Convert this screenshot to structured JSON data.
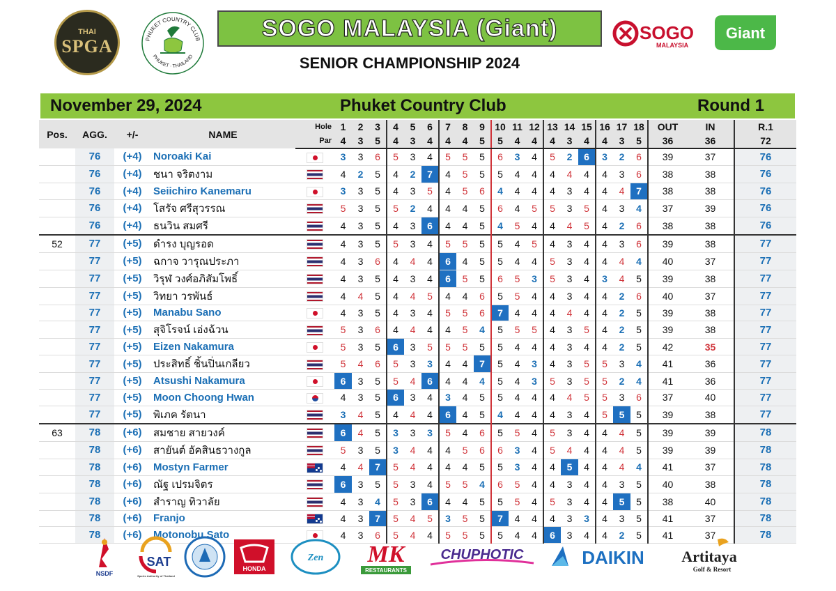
{
  "header": {
    "spga_logo_small": "THAI",
    "spga_logo": "SPGA",
    "pcc_logo_top": "PHUKET COUNTRY CLUB",
    "pcc_logo_bottom": "PHUKET · THAILAND",
    "title": "SOGO MALAYSIA (Giant)",
    "subtitle": "SENIOR CHAMPIONSHIP 2024",
    "sogo_logo": "SOGO",
    "sogo_logo_sub": "MALAYSIA",
    "giant_logo": "Giant"
  },
  "event": {
    "date": "November 29, 2024",
    "venue": "Phuket Country Club",
    "round": "Round 1"
  },
  "columns": {
    "pos": "Pos.",
    "agg": "AGG.",
    "pm": "+/-",
    "name": "NAME",
    "hole_label": "Hole",
    "par_label": "Par",
    "out": "OUT",
    "in": "IN",
    "r1": "R.1"
  },
  "holes": [
    "1",
    "2",
    "3",
    "4",
    "5",
    "6",
    "7",
    "8",
    "9",
    "10",
    "11",
    "12",
    "13",
    "14",
    "15",
    "16",
    "17",
    "18"
  ],
  "pars": [
    "4",
    "3",
    "5",
    "4",
    "3",
    "4",
    "4",
    "4",
    "5",
    "5",
    "4",
    "4",
    "4",
    "3",
    "4",
    "4",
    "3",
    "5"
  ],
  "par_out": "36",
  "par_in": "36",
  "par_total": "72",
  "players": [
    {
      "pos": "",
      "agg": "76",
      "pm": "(+4)",
      "name": "Noroaki Kai",
      "flag": "jp",
      "scores": [
        "3",
        "3",
        "6",
        "5",
        "3",
        "4",
        "5",
        "5",
        "5",
        "6",
        "3",
        "4",
        "5",
        "2",
        "6",
        "3",
        "2",
        "6"
      ],
      "out": "39",
      "in": "37",
      "r1": "76"
    },
    {
      "pos": "",
      "agg": "76",
      "pm": "(+4)",
      "name": "ชนา จริตงาม",
      "flag": "th",
      "scores": [
        "4",
        "2",
        "5",
        "4",
        "2",
        "7",
        "4",
        "5",
        "5",
        "5",
        "4",
        "4",
        "4",
        "4",
        "4",
        "4",
        "3",
        "6"
      ],
      "out": "38",
      "in": "38",
      "r1": "76"
    },
    {
      "pos": "",
      "agg": "76",
      "pm": "(+4)",
      "name": "Seiichiro Kanemaru",
      "flag": "jp",
      "scores": [
        "3",
        "3",
        "5",
        "4",
        "3",
        "5",
        "4",
        "5",
        "6",
        "4",
        "4",
        "4",
        "4",
        "3",
        "4",
        "4",
        "4",
        "7"
      ],
      "out": "38",
      "in": "38",
      "r1": "76"
    },
    {
      "pos": "",
      "agg": "76",
      "pm": "(+4)",
      "name": "โสรัจ ศรีสุวรรณ",
      "flag": "th",
      "scores": [
        "5",
        "3",
        "5",
        "5",
        "2",
        "4",
        "4",
        "4",
        "5",
        "6",
        "4",
        "5",
        "5",
        "3",
        "5",
        "4",
        "3",
        "4"
      ],
      "out": "37",
      "in": "39",
      "r1": "76"
    },
    {
      "pos": "",
      "agg": "76",
      "pm": "(+4)",
      "name": "ธนวิน สมศรี",
      "flag": "th",
      "scores": [
        "4",
        "3",
        "5",
        "4",
        "3",
        "6",
        "4",
        "4",
        "5",
        "4",
        "5",
        "4",
        "4",
        "4",
        "5",
        "4",
        "2",
        "6"
      ],
      "out": "38",
      "in": "38",
      "r1": "76"
    },
    {
      "pos": "52",
      "agg": "77",
      "pm": "(+5)",
      "name": "ดำรง บุญรอด",
      "flag": "th",
      "scores": [
        "4",
        "3",
        "5",
        "5",
        "3",
        "4",
        "5",
        "5",
        "5",
        "5",
        "4",
        "5",
        "4",
        "3",
        "4",
        "4",
        "3",
        "6"
      ],
      "out": "39",
      "in": "38",
      "r1": "77"
    },
    {
      "pos": "",
      "agg": "77",
      "pm": "(+5)",
      "name": "ฉกาจ วารุณประภา",
      "flag": "th",
      "scores": [
        "4",
        "3",
        "6",
        "4",
        "4",
        "4",
        "6",
        "4",
        "5",
        "5",
        "4",
        "4",
        "5",
        "3",
        "4",
        "4",
        "4",
        "4"
      ],
      "out": "40",
      "in": "37",
      "r1": "77"
    },
    {
      "pos": "",
      "agg": "77",
      "pm": "(+5)",
      "name": "วิรุฬ วงศ์อภิสัมโพธิ์",
      "flag": "th",
      "scores": [
        "4",
        "3",
        "5",
        "4",
        "3",
        "4",
        "6",
        "5",
        "5",
        "6",
        "5",
        "3",
        "5",
        "3",
        "4",
        "3",
        "4",
        "5"
      ],
      "out": "39",
      "in": "38",
      "r1": "77"
    },
    {
      "pos": "",
      "agg": "77",
      "pm": "(+5)",
      "name": "วิทยา วรพันธ์",
      "flag": "th",
      "scores": [
        "4",
        "4",
        "5",
        "4",
        "4",
        "5",
        "4",
        "4",
        "6",
        "5",
        "5",
        "4",
        "4",
        "3",
        "4",
        "4",
        "2",
        "6"
      ],
      "out": "40",
      "in": "37",
      "r1": "77"
    },
    {
      "pos": "",
      "agg": "77",
      "pm": "(+5)",
      "name": "Manabu Sano",
      "flag": "jp",
      "scores": [
        "4",
        "3",
        "5",
        "4",
        "3",
        "4",
        "5",
        "5",
        "6",
        "7",
        "4",
        "4",
        "4",
        "4",
        "4",
        "4",
        "2",
        "5"
      ],
      "out": "39",
      "in": "38",
      "r1": "77"
    },
    {
      "pos": "",
      "agg": "77",
      "pm": "(+5)",
      "name": "สุจิโรจน์ เอ่งฉ้วน",
      "flag": "th",
      "scores": [
        "5",
        "3",
        "6",
        "4",
        "4",
        "4",
        "4",
        "5",
        "4",
        "5",
        "5",
        "5",
        "4",
        "3",
        "5",
        "4",
        "2",
        "5"
      ],
      "out": "39",
      "in": "38",
      "r1": "77"
    },
    {
      "pos": "",
      "agg": "77",
      "pm": "(+5)",
      "name": "Eizen Nakamura",
      "flag": "jp",
      "scores": [
        "5",
        "3",
        "5",
        "6",
        "3",
        "5",
        "5",
        "5",
        "5",
        "5",
        "4",
        "4",
        "4",
        "3",
        "4",
        "4",
        "2",
        "5"
      ],
      "out": "42",
      "in": "35",
      "r1": "77"
    },
    {
      "pos": "",
      "agg": "77",
      "pm": "(+5)",
      "name": "ประสิทธิ์ ชิ้นปิ่นเกลียว",
      "flag": "th",
      "scores": [
        "5",
        "4",
        "6",
        "5",
        "3",
        "3",
        "4",
        "4",
        "7",
        "5",
        "4",
        "3",
        "4",
        "3",
        "5",
        "5",
        "3",
        "4"
      ],
      "out": "41",
      "in": "36",
      "r1": "77"
    },
    {
      "pos": "",
      "agg": "77",
      "pm": "(+5)",
      "name": "Atsushi Nakamura",
      "flag": "jp",
      "scores": [
        "6",
        "3",
        "5",
        "5",
        "4",
        "6",
        "4",
        "4",
        "4",
        "5",
        "4",
        "3",
        "5",
        "3",
        "5",
        "5",
        "2",
        "4"
      ],
      "out": "41",
      "in": "36",
      "r1": "77"
    },
    {
      "pos": "",
      "agg": "77",
      "pm": "(+5)",
      "name": "Moon Choong Hwan",
      "flag": "kr",
      "scores": [
        "4",
        "3",
        "5",
        "6",
        "3",
        "4",
        "3",
        "4",
        "5",
        "5",
        "4",
        "4",
        "4",
        "4",
        "5",
        "5",
        "3",
        "6"
      ],
      "out": "37",
      "in": "40",
      "r1": "77"
    },
    {
      "pos": "",
      "agg": "77",
      "pm": "(+5)",
      "name": "พิเภค รัตนา",
      "flag": "th",
      "scores": [
        "3",
        "4",
        "5",
        "4",
        "4",
        "4",
        "6",
        "4",
        "5",
        "4",
        "4",
        "4",
        "4",
        "3",
        "4",
        "5",
        "5",
        "5"
      ],
      "out": "39",
      "in": "38",
      "r1": "77"
    },
    {
      "pos": "63",
      "agg": "78",
      "pm": "(+6)",
      "name": "สมชาย สายวงค์",
      "flag": "th",
      "scores": [
        "6",
        "4",
        "5",
        "3",
        "3",
        "3",
        "5",
        "4",
        "6",
        "5",
        "5",
        "4",
        "5",
        "3",
        "4",
        "4",
        "4",
        "5"
      ],
      "out": "39",
      "in": "39",
      "r1": "78"
    },
    {
      "pos": "",
      "agg": "78",
      "pm": "(+6)",
      "name": "สายันต์ อัคสินธวางกูล",
      "flag": "th",
      "scores": [
        "5",
        "3",
        "5",
        "3",
        "4",
        "4",
        "4",
        "5",
        "6",
        "6",
        "3",
        "4",
        "5",
        "4",
        "4",
        "4",
        "4",
        "5"
      ],
      "out": "39",
      "in": "39",
      "r1": "78"
    },
    {
      "pos": "",
      "agg": "78",
      "pm": "(+6)",
      "name": "Mostyn Farmer",
      "flag": "au",
      "scores": [
        "4",
        "4",
        "7",
        "5",
        "4",
        "4",
        "4",
        "4",
        "5",
        "5",
        "3",
        "4",
        "4",
        "5",
        "4",
        "4",
        "4",
        "4"
      ],
      "out": "41",
      "in": "37",
      "r1": "78"
    },
    {
      "pos": "",
      "agg": "78",
      "pm": "(+6)",
      "name": "ณัฐ เปรมจิตร",
      "flag": "th",
      "scores": [
        "6",
        "3",
        "5",
        "5",
        "3",
        "4",
        "5",
        "5",
        "4",
        "6",
        "5",
        "4",
        "4",
        "3",
        "4",
        "4",
        "3",
        "5"
      ],
      "out": "40",
      "in": "38",
      "r1": "78"
    },
    {
      "pos": "",
      "agg": "78",
      "pm": "(+6)",
      "name": "สำราญ ทิวาลัย",
      "flag": "th",
      "scores": [
        "4",
        "3",
        "4",
        "5",
        "3",
        "6",
        "4",
        "4",
        "5",
        "5",
        "5",
        "4",
        "5",
        "3",
        "4",
        "4",
        "5",
        "5"
      ],
      "out": "38",
      "in": "40",
      "r1": "78"
    },
    {
      "pos": "",
      "agg": "78",
      "pm": "(+6)",
      "name": "Franjo",
      "flag": "au",
      "scores": [
        "4",
        "3",
        "7",
        "5",
        "4",
        "5",
        "3",
        "5",
        "5",
        "7",
        "4",
        "4",
        "4",
        "3",
        "3",
        "4",
        "3",
        "5"
      ],
      "out": "41",
      "in": "37",
      "r1": "78"
    },
    {
      "pos": "",
      "agg": "78",
      "pm": "(+6)",
      "name": "Motonobu Sato",
      "flag": "jp",
      "scores": [
        "4",
        "3",
        "6",
        "5",
        "4",
        "4",
        "5",
        "5",
        "5",
        "5",
        "4",
        "4",
        "6",
        "3",
        "4",
        "4",
        "2",
        "5"
      ],
      "out": "41",
      "in": "37",
      "r1": "78"
    }
  ],
  "sponsors": [
    {
      "name": "NSDF",
      "color": "#1d3d8f"
    },
    {
      "name": "SAT",
      "color": "#1d3d8f"
    },
    {
      "name": "",
      "color": "#1d6ab5"
    },
    {
      "name": "HONDA",
      "color": "#d0102a"
    },
    {
      "name": "Zen",
      "color": "#1d8fc1"
    },
    {
      "name": "MK",
      "color": "#d0102a"
    },
    {
      "name": "CHUPHOTIC",
      "color": "#4a2b8f"
    },
    {
      "name": "DAIKIN",
      "color": "#1d70c1"
    },
    {
      "name": "Artitaya",
      "color": "#222222"
    }
  ],
  "sponsor_sub": {
    "mk": "RESTAURANTS",
    "artitaya": "Golf & Resort",
    "sat": "Sports Authority of Thailand"
  },
  "colors": {
    "green_bar": "#8dc63f",
    "accent_blue": "#1b6fb5",
    "eagle_blue": "#1f70c1",
    "over_red": "#d0343a"
  }
}
